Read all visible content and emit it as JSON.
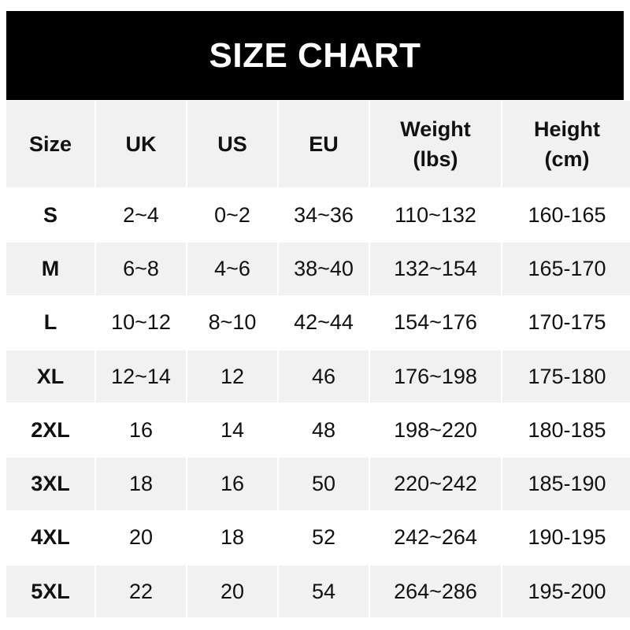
{
  "title": "SIZE CHART",
  "headers": [
    "Size",
    "UK",
    "US",
    "EU",
    "Weight\n(lbs)",
    "Height\n(cm)"
  ],
  "header_lines": {
    "weight": [
      "Weight",
      "(lbs)"
    ],
    "height": [
      "Height",
      "(cm)"
    ]
  },
  "rows": [
    [
      "S",
      "2~4",
      "0~2",
      "34~36",
      "110~132",
      "160-165"
    ],
    [
      "M",
      "6~8",
      "4~6",
      "38~40",
      "132~154",
      "165-170"
    ],
    [
      "L",
      "10~12",
      "8~10",
      "42~44",
      "154~176",
      "170-175"
    ],
    [
      "XL",
      "12~14",
      "12",
      "46",
      "176~198",
      "175-180"
    ],
    [
      "2XL",
      "16",
      "14",
      "48",
      "198~220",
      "180-185"
    ],
    [
      "3XL",
      "18",
      "16",
      "50",
      "220~242",
      "185-190"
    ],
    [
      "4XL",
      "20",
      "18",
      "52",
      "242~264",
      "190-195"
    ],
    [
      "5XL",
      "22",
      "20",
      "54",
      "264~286",
      "195-200"
    ]
  ],
  "colors": {
    "title_bg": "#000000",
    "title_text": "#ffffff",
    "stripe": "#f1f1f1"
  }
}
